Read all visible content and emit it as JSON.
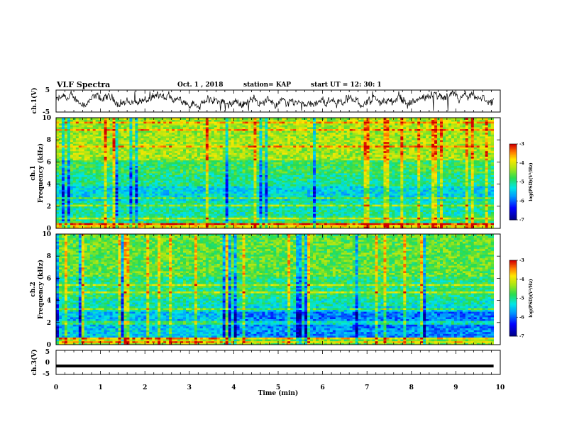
{
  "header": {
    "title": "VLF Spectra",
    "date": "Oct. 1  , 2018",
    "station": "station= KAP",
    "start": "start  UT  =   12: 30: 1"
  },
  "chart_data": [
    {
      "type": "line",
      "name": "ch1-waveform",
      "ylabel": "ch.1(V)",
      "xlim": [
        0,
        10
      ],
      "ylim": [
        -5,
        5
      ],
      "yticks": [
        "5",
        "-5"
      ],
      "data_end_x": 9.85,
      "description_values": "noisy waveform oscillating roughly between -3 and +3 V"
    },
    {
      "type": "heatmap",
      "name": "ch1-spectrogram",
      "ylabel_top": "ch.1",
      "ylabel": "Frequency  (kHz)",
      "xlim": [
        0,
        10
      ],
      "ylim": [
        0,
        10
      ],
      "yticks": [
        "0",
        "2",
        "4",
        "6",
        "8",
        "10"
      ],
      "colorbar": {
        "label": "log(PSD)(V²/Hz)",
        "range": [
          -7,
          -3
        ],
        "ticks": [
          "-3",
          "-4",
          "-5",
          "-6",
          "-7"
        ]
      }
    },
    {
      "type": "heatmap",
      "name": "ch2-spectrogram",
      "ylabel_top": "ch.2",
      "ylabel": "Frequency  (kHz)",
      "xlim": [
        0,
        10
      ],
      "ylim": [
        0,
        10
      ],
      "yticks": [
        "0",
        "2",
        "4",
        "6",
        "8",
        "10"
      ],
      "colorbar": {
        "label": "log(PSD)(V²/Hz)",
        "range": [
          -7,
          -3
        ],
        "ticks": [
          "-3",
          "-4",
          "-5",
          "-6",
          "-7"
        ]
      }
    },
    {
      "type": "line",
      "name": "ch3-waveform",
      "ylabel": "ch.3(V)",
      "xlim": [
        0,
        10
      ],
      "ylim": [
        -5,
        5
      ],
      "yticks": [
        "5",
        "0",
        "-5"
      ],
      "constant_value": -1.5,
      "data_end_x": 9.85
    }
  ],
  "xaxis": {
    "label": "Time  (min)",
    "ticks": [
      "0",
      "1",
      "2",
      "3",
      "4",
      "5",
      "6",
      "7",
      "8",
      "9",
      "10"
    ]
  },
  "colors": {
    "trace": "#000000",
    "axis": "#000000"
  }
}
